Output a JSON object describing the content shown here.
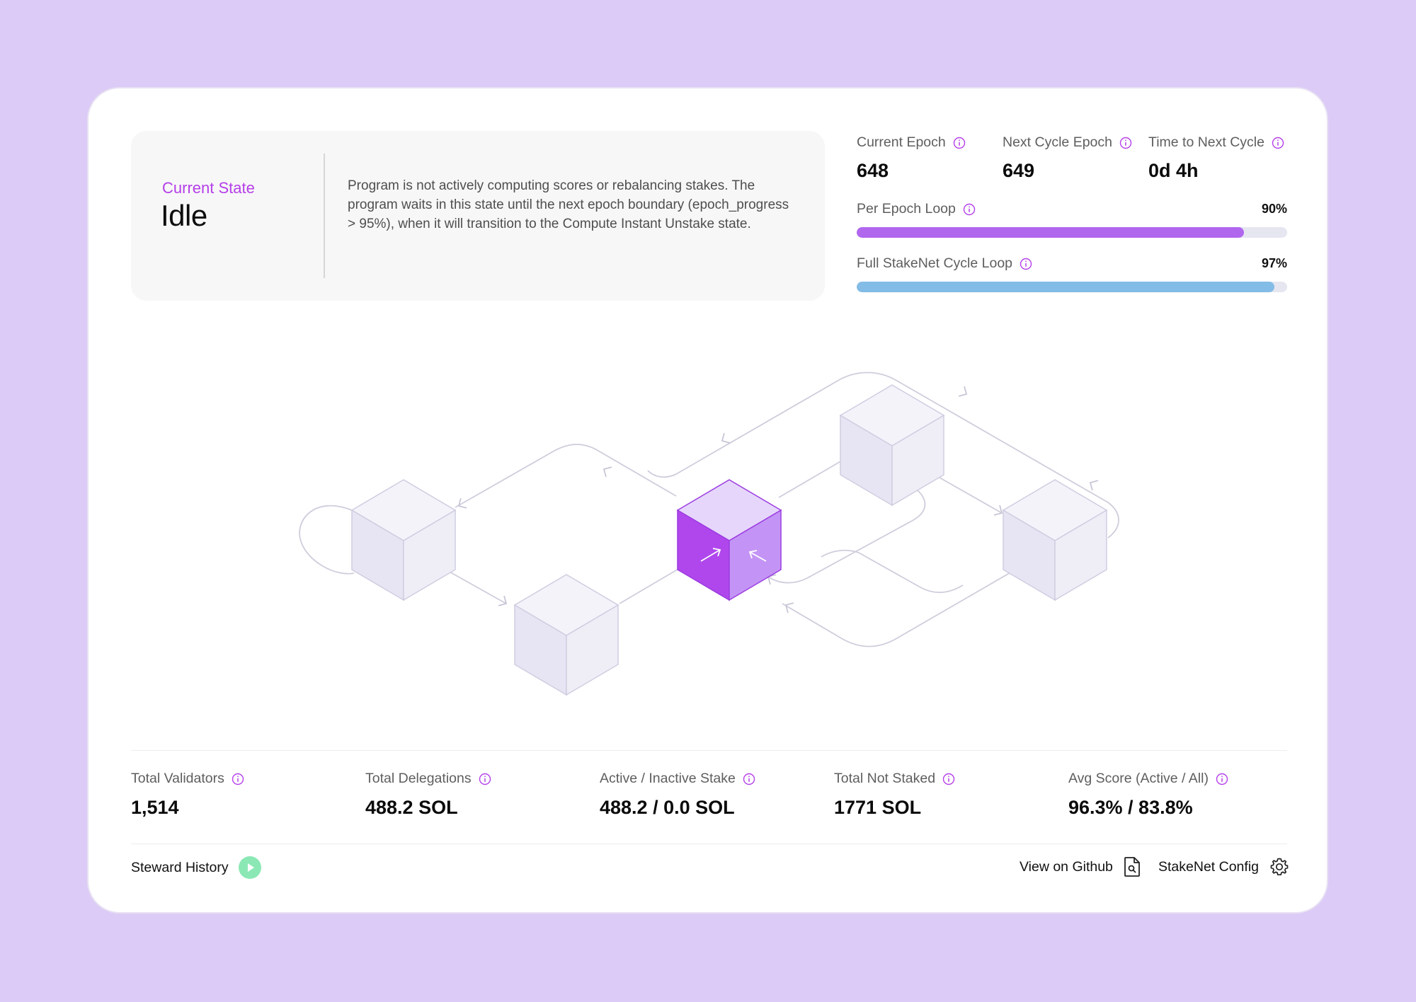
{
  "state": {
    "label": "Current State",
    "value": "Idle",
    "description": "Program is not actively computing scores or rebalancing stakes. The program waits in this state until the next epoch boundary (epoch_progress > 95%), when it will transition to the Compute Instant Unstake state."
  },
  "epoch": {
    "current_label": "Current Epoch",
    "current_value": "648",
    "next_label": "Next Cycle Epoch",
    "next_value": "649",
    "time_label": "Time to Next Cycle",
    "time_value": "0d 4h"
  },
  "progress": [
    {
      "label": "Per Epoch Loop",
      "percent_text": "90%",
      "fraction": 0.9,
      "color": "#b067ee"
    },
    {
      "label": "Full StakeNet Cycle Loop",
      "percent_text": "97%",
      "fraction": 0.97,
      "color": "#83bce6"
    }
  ],
  "stats": [
    {
      "label": "Total Validators",
      "value": "1,514"
    },
    {
      "label": "Total Delegations",
      "value": "488.2 SOL"
    },
    {
      "label": "Active / Inactive Stake",
      "value": "488.2 / 0.0 SOL"
    },
    {
      "label": "Total Not Staked",
      "value": "1771 SOL"
    },
    {
      "label": "Avg Score (Active / All)",
      "value": "96.3% / 83.8%"
    }
  ],
  "footer": {
    "history_label": "Steward History",
    "github_label": "View on Github",
    "config_label": "StakeNet Config"
  },
  "colors": {
    "accent": "#b53ee9",
    "active_cube": "#b047ec",
    "inactive_cube": "#ecebf6",
    "background": "#dccbf6"
  },
  "icons": [
    "info-icon",
    "play-icon",
    "document-search-icon",
    "gear-icon"
  ]
}
